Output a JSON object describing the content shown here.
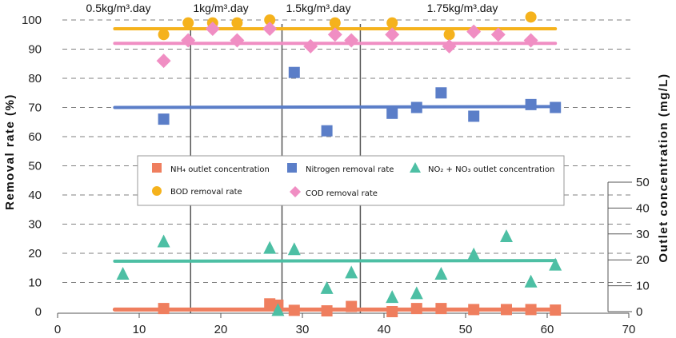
{
  "chart_data": {
    "type": "scatter",
    "x_axis": {
      "range": [
        0,
        70
      ],
      "ticks": [
        0,
        10,
        20,
        30,
        40,
        50,
        60,
        70
      ]
    },
    "y_left": {
      "label": "Removal rate (%)",
      "ticks": [
        0,
        10,
        20,
        30,
        40,
        50,
        60,
        70,
        80,
        90,
        100
      ]
    },
    "y_right": {
      "label": "Outlet concentration (mg/L)",
      "ticks": [
        0,
        10,
        20,
        30,
        40,
        50
      ]
    },
    "phases": [
      {
        "label": "0.5kg/m³.day",
        "start": 7,
        "end": 16.3
      },
      {
        "label": "1kg/m³.day",
        "start": 16.3,
        "end": 27.5
      },
      {
        "label": "1.5kg/m³.day",
        "start": 27.5,
        "end": 37.1
      },
      {
        "label": "1.75kg/m³.day",
        "start": 37.1,
        "end": 61
      }
    ],
    "series": [
      {
        "name": "NH₄ outlet concentration",
        "axis": "right",
        "marker": "square",
        "color": "#ef7e5e",
        "trend": [
          0.8,
          0.8
        ],
        "points": [
          [
            13,
            1.2
          ],
          [
            26,
            3
          ],
          [
            27,
            2.5
          ],
          [
            29,
            0.5
          ],
          [
            33,
            0.3
          ],
          [
            36,
            2
          ],
          [
            41,
            0
          ],
          [
            44,
            1.2
          ],
          [
            47,
            1.2
          ],
          [
            51,
            0.8
          ],
          [
            55,
            0.8
          ],
          [
            58,
            0.8
          ],
          [
            61,
            0.6
          ]
        ]
      },
      {
        "name": "Nitrogen removal rate",
        "axis": "left",
        "marker": "square",
        "color": "#5b7ec8",
        "trend": [
          70,
          70.3
        ],
        "points": [
          [
            13,
            66
          ],
          [
            29,
            82
          ],
          [
            33,
            62
          ],
          [
            41,
            68
          ],
          [
            44,
            70
          ],
          [
            47,
            75
          ],
          [
            51,
            67
          ],
          [
            58,
            71
          ],
          [
            61,
            70
          ]
        ]
      },
      {
        "name": "NO₂ + NO₃ outlet concentration",
        "axis": "right",
        "marker": "triangle",
        "color": "#4dbfa4",
        "trend": [
          19.5,
          19.7
        ],
        "points": [
          [
            8,
            14.5
          ],
          [
            13,
            27
          ],
          [
            26,
            24.5
          ],
          [
            27,
            0.5
          ],
          [
            29,
            24
          ],
          [
            33,
            9
          ],
          [
            36,
            15
          ],
          [
            41,
            5.5
          ],
          [
            44,
            7
          ],
          [
            47,
            14.5
          ],
          [
            51,
            22
          ],
          [
            55,
            29
          ],
          [
            58,
            11.5
          ],
          [
            61,
            18
          ]
        ]
      },
      {
        "name": "BOD removal rate",
        "axis": "left",
        "marker": "circle",
        "color": "#f5b21c",
        "trend": [
          97,
          97
        ],
        "points": [
          [
            13,
            95
          ],
          [
            16,
            99
          ],
          [
            19,
            99
          ],
          [
            22,
            99
          ],
          [
            26,
            100
          ],
          [
            34,
            99
          ],
          [
            41,
            99
          ],
          [
            48,
            95
          ],
          [
            58,
            101
          ]
        ]
      },
      {
        "name": "COD removal rate",
        "axis": "left",
        "marker": "diamond",
        "color": "#f08ec3",
        "trend": [
          92,
          92
        ],
        "points": [
          [
            13,
            86
          ],
          [
            16,
            93
          ],
          [
            19,
            97
          ],
          [
            22,
            93
          ],
          [
            26,
            97
          ],
          [
            31,
            91
          ],
          [
            34,
            95
          ],
          [
            36,
            93
          ],
          [
            41,
            95
          ],
          [
            48,
            91
          ],
          [
            51,
            96
          ],
          [
            54,
            95
          ],
          [
            58,
            93
          ]
        ]
      }
    ]
  }
}
